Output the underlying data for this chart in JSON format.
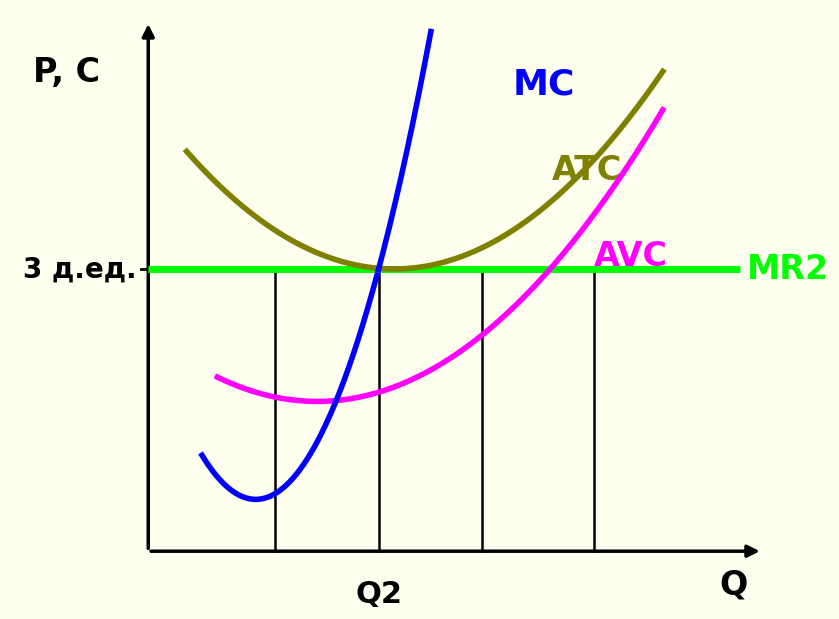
{
  "background_color": "#FFFFF0",
  "ylabel": "P, C",
  "xlabel": "Q",
  "MR2_label": "MR2",
  "MC_label": "MC",
  "ATC_label": "ATC",
  "AVC_label": "AVC",
  "price_label": "3 д.ед.",
  "Q2_label": "Q2",
  "MC_color": "#0000FF",
  "ATC_color": "#808000",
  "AVC_color": "#FF00FF",
  "MR2_color": "#00FF00",
  "text_color": "#000000",
  "MC_label_color": "#0000FF",
  "ATC_label_color": "#808000",
  "AVC_label_color": "#FF00FF",
  "MR2_label_color": "#00FF00",
  "curve_linewidth": 4.0,
  "MR2_linewidth": 5.0,
  "vline_linewidth": 1.8
}
